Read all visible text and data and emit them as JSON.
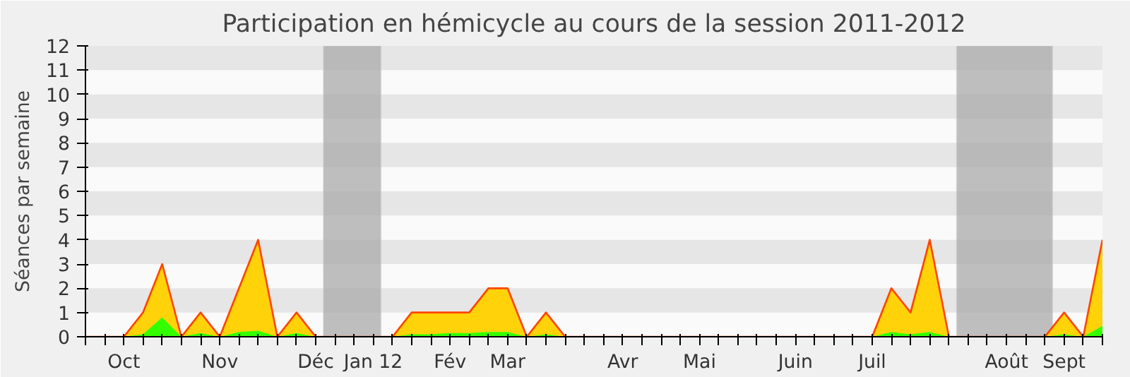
{
  "chart_data": {
    "type": "area",
    "title": "Participation en hémicycle au cours de la session 2011-2012",
    "ylabel": "Séances par semaine",
    "categories": [
      null,
      null,
      "Oct",
      null,
      null,
      null,
      null,
      "Nov",
      null,
      null,
      null,
      null,
      "Déc",
      null,
      null,
      "Jan 12",
      null,
      null,
      null,
      "Fév",
      null,
      null,
      "Mar",
      null,
      null,
      null,
      null,
      null,
      "Avr",
      null,
      null,
      null,
      "Mai",
      null,
      null,
      null,
      null,
      "Juin",
      null,
      null,
      null,
      "Juil",
      null,
      null,
      null,
      null,
      null,
      null,
      "Août",
      null,
      null,
      "Sept",
      null,
      null
    ],
    "series": [
      {
        "color": "#ffd20a",
        "values": [
          0,
          0,
          0,
          1,
          3,
          0,
          1,
          0,
          2,
          4,
          0,
          1,
          0,
          0,
          0,
          0,
          0,
          1,
          1,
          1,
          1,
          2,
          2,
          0,
          1,
          0,
          0,
          0,
          0,
          0,
          0,
          0,
          0,
          0,
          0,
          0,
          0,
          0,
          0,
          0,
          0,
          0,
          2,
          1,
          4,
          0,
          0,
          0,
          0,
          0,
          0,
          1,
          0,
          4
        ]
      },
      {
        "color": "#33ff00",
        "values": [
          0,
          0,
          0,
          0.1,
          0.8,
          0,
          0.15,
          0,
          0.2,
          0.25,
          0,
          0.15,
          0,
          0,
          0,
          0,
          0,
          0.1,
          0.1,
          0.15,
          0.15,
          0.2,
          0.2,
          0,
          0.1,
          0,
          0,
          0,
          0,
          0,
          0,
          0,
          0,
          0,
          0,
          0,
          0,
          0,
          0,
          0,
          0,
          0,
          0.2,
          0.1,
          0.2,
          0,
          0,
          0,
          0,
          0,
          0,
          0.1,
          0,
          0.45
        ]
      }
    ],
    "ylim": [
      0,
      12
    ],
    "yticks": [
      0,
      1,
      2,
      3,
      4,
      5,
      6,
      7,
      8,
      9,
      10,
      11,
      12
    ]
  }
}
